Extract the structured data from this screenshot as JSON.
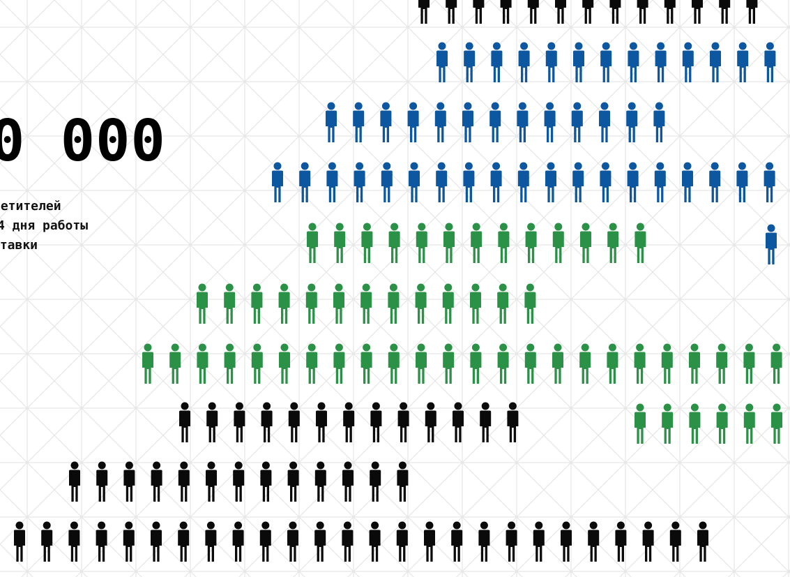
{
  "colors": {
    "background": "#ffffff",
    "pattern_line": "#e6e6e6",
    "black": "#0a0a0a",
    "blue": "#0d56a0",
    "green": "#2b9147"
  },
  "stat": {
    "number": "0 000",
    "caption_lines": [
      "сетителей",
      "4 дня работы",
      "ставки"
    ]
  },
  "figure_rows": [
    {
      "color": "black",
      "count": 13
    },
    {
      "color": "blue",
      "count": 13
    },
    {
      "color": "blue",
      "count": 13
    },
    {
      "color": "blue",
      "count": 19
    },
    {
      "color": "green",
      "count": 13
    },
    {
      "color": "blue",
      "count": 1
    },
    {
      "color": "green",
      "count": 13
    },
    {
      "color": "green",
      "count": 24
    },
    {
      "color": "black",
      "count": 13
    },
    {
      "color": "green",
      "count": 6
    },
    {
      "color": "black",
      "count": 13
    },
    {
      "color": "black",
      "count": 26
    }
  ]
}
